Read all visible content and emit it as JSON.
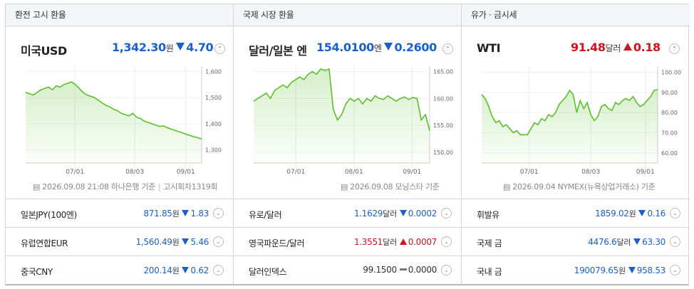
{
  "columns": [
    {
      "header": "환전 고시 환율",
      "main": {
        "name": "미국USD",
        "price": "1,342.30",
        "unit": "원",
        "change": "4.70",
        "dir": "down",
        "source": "2026.09.08 21:08 하나은행 기준",
        "source2": "고시회차1319회"
      },
      "chart_data": {
        "type": "area",
        "color": "#5bbf2a",
        "ylim": [
          1250,
          1620
        ],
        "yticks": [
          "1,600",
          "1,500",
          "1,400",
          "1,300"
        ],
        "ytick_values": [
          1600,
          1500,
          1400,
          1300
        ],
        "xticks": [
          "07/01",
          "08/03",
          "09/01"
        ],
        "values": [
          1520,
          1515,
          1510,
          1520,
          1530,
          1535,
          1540,
          1530,
          1545,
          1540,
          1550,
          1555,
          1560,
          1550,
          1535,
          1520,
          1510,
          1505,
          1500,
          1490,
          1480,
          1470,
          1465,
          1455,
          1450,
          1440,
          1435,
          1430,
          1440,
          1425,
          1420,
          1410,
          1405,
          1400,
          1395,
          1390,
          1392,
          1385,
          1380,
          1375,
          1370,
          1365,
          1360,
          1355,
          1350,
          1347,
          1342
        ]
      },
      "rows": [
        {
          "name": "일본JPY(100엔)",
          "value": "871.85",
          "unit": "원",
          "change": "1.83",
          "dir": "down"
        },
        {
          "name": "유럽연합EUR",
          "value": "1,560.49",
          "unit": "원",
          "change": "5.46",
          "dir": "down"
        },
        {
          "name": "중국CNY",
          "value": "200.14",
          "unit": "원",
          "change": "0.62",
          "dir": "down"
        }
      ]
    },
    {
      "header": "국제 시장 환율",
      "main": {
        "name": "달러/일본 엔",
        "price": "154.0100",
        "unit": "엔",
        "change": "0.2600",
        "dir": "down",
        "source": "2026.09.08 모닝스타 기준",
        "source2": ""
      },
      "chart_data": {
        "type": "area",
        "color": "#5bbf2a",
        "ylim": [
          148,
          166
        ],
        "yticks": [
          "165.00",
          "160.00",
          "155.00",
          "150.00"
        ],
        "ytick_values": [
          165,
          160,
          155,
          150
        ],
        "xticks": [
          "07/01",
          "08/01",
          "09/01"
        ],
        "values": [
          159.5,
          160,
          160.5,
          161,
          160,
          161.5,
          162,
          162.5,
          162,
          163,
          163.5,
          164,
          163.5,
          164.5,
          165,
          164.5,
          165.5,
          165.2,
          165.5,
          158,
          156,
          157,
          159,
          160,
          159.5,
          160,
          159,
          160,
          159.5,
          160.5,
          160,
          159.8,
          160.5,
          160,
          159.5,
          160,
          160.3,
          159.8,
          160.2,
          160,
          156,
          157,
          154
        ]
      },
      "rows": [
        {
          "name": "유로/달러",
          "value": "1.1629",
          "unit": "달러",
          "change": "0.0002",
          "dir": "down"
        },
        {
          "name": "영국파운드/달러",
          "value": "1.3551",
          "unit": "달러",
          "change": "0.0007",
          "dir": "up"
        },
        {
          "name": "달러인덱스",
          "value": "99.1500",
          "unit": "",
          "change": "0.0000",
          "dir": "flat"
        }
      ]
    },
    {
      "header": "유가 · 금시세",
      "main": {
        "name": "WTI",
        "price": "91.48",
        "unit": "달러",
        "change": "0.18",
        "dir": "up",
        "source": "2026.09.04 NYMEX(뉴욕상업거래소) 기준",
        "source2": ""
      },
      "chart_data": {
        "type": "area",
        "color": "#5bbf2a",
        "ylim": [
          55,
          103
        ],
        "yticks": [
          "100.00",
          "90.00",
          "80.00",
          "70.00",
          "60.00"
        ],
        "ytick_values": [
          100,
          90,
          80,
          70,
          60
        ],
        "xticks": [
          "07/01",
          "08/03",
          "09/01"
        ],
        "values": [
          89,
          87,
          83,
          78,
          75,
          76,
          73,
          74,
          72,
          70,
          71,
          69,
          69,
          69,
          72,
          75,
          74,
          77,
          76,
          79,
          78,
          80,
          84,
          86,
          88,
          91,
          89,
          80,
          86,
          82,
          85,
          79,
          76,
          78,
          83,
          84,
          82,
          81,
          85,
          84,
          86,
          87,
          86,
          88,
          85,
          83,
          84,
          86,
          88,
          91,
          91.5
        ]
      },
      "rows": [
        {
          "name": "휘발유",
          "value": "1859.02",
          "unit": "원",
          "change": "0.16",
          "dir": "down"
        },
        {
          "name": "국제 금",
          "value": "4476.6",
          "unit": "달러",
          "change": "63.30",
          "dir": "down"
        },
        {
          "name": "국내 금",
          "value": "190079.65",
          "unit": "원",
          "change": "958.53",
          "dir": "down"
        }
      ]
    }
  ],
  "toggle_glyph": "⌃",
  "row_toggle_glyph": "⌄"
}
